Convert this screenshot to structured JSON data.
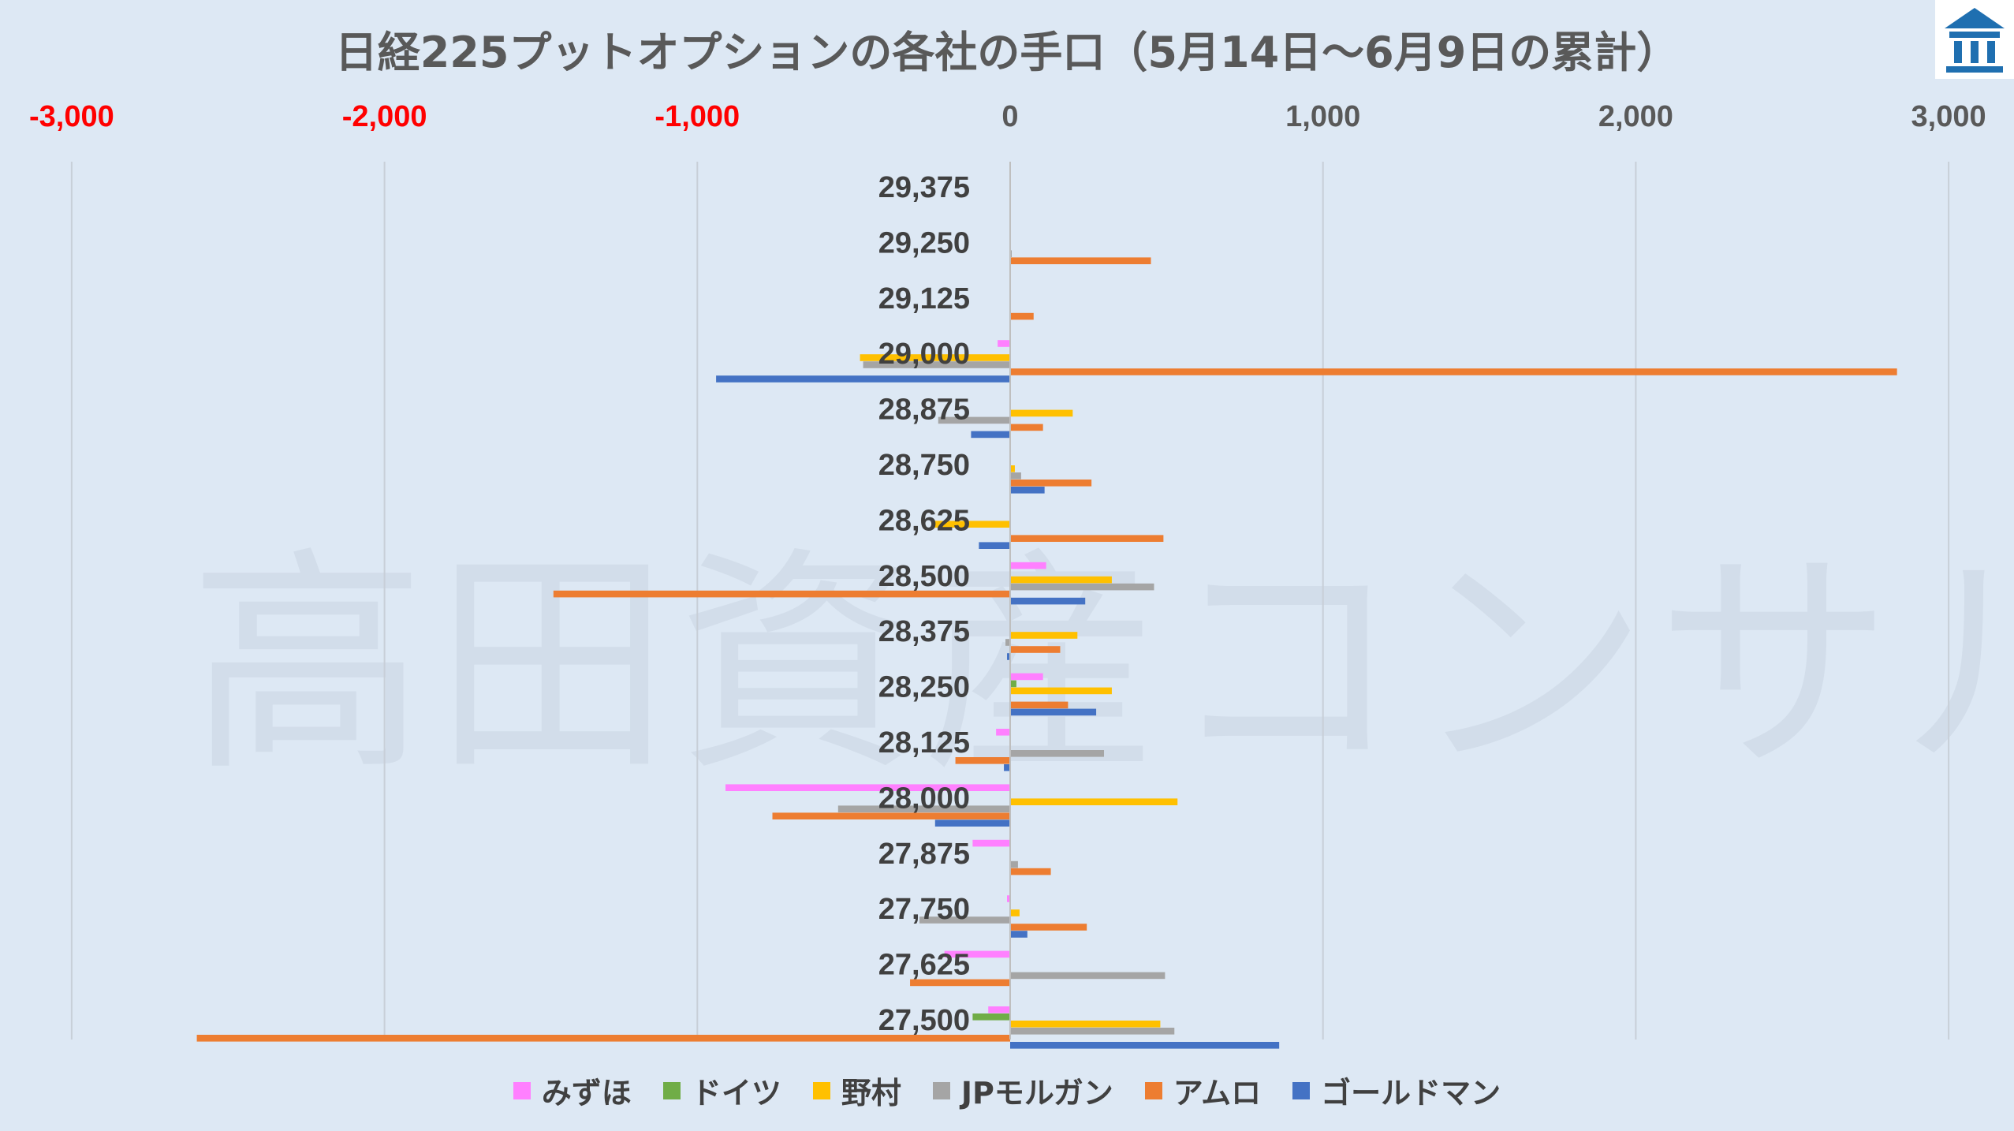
{
  "chart_data": {
    "type": "bar",
    "orientation": "horizontal",
    "title": "日経225プットオプションの各社の手口（5月14日～6月9日の累計）",
    "xlim": [
      -3000,
      3000
    ],
    "x_ticks": [
      "-3,000",
      "-2,000",
      "-1,000",
      "0",
      "1,000",
      "2,000",
      "3,000"
    ],
    "x_tick_values": [
      -3000,
      -2000,
      -1000,
      0,
      1000,
      2000,
      3000
    ],
    "grid": true,
    "legend_position": "bottom",
    "categories": [
      "29,375",
      "29,250",
      "29,125",
      "29,000",
      "28,875",
      "28,750",
      "28,625",
      "28,500",
      "28,375",
      "28,250",
      "28,125",
      "28,000",
      "27,875",
      "27,750",
      "27,625",
      "27,500"
    ],
    "series": [
      {
        "name": "みずほ",
        "color": "#ff80ff",
        "values": [
          0,
          0,
          0,
          -40,
          0,
          0,
          0,
          115,
          0,
          105,
          -45,
          -910,
          -120,
          -10,
          -210,
          -70
        ]
      },
      {
        "name": "ドイツ",
        "color": "#70ad47",
        "values": [
          0,
          0,
          0,
          0,
          0,
          0,
          0,
          0,
          0,
          20,
          0,
          0,
          0,
          0,
          0,
          -120
        ]
      },
      {
        "name": "野村",
        "color": "#ffc000",
        "values": [
          0,
          0,
          0,
          -480,
          200,
          15,
          -250,
          325,
          215,
          325,
          0,
          535,
          0,
          30,
          0,
          480
        ]
      },
      {
        "name": "JPモルガン",
        "color": "#a5a5a5",
        "values": [
          0,
          5,
          0,
          -470,
          -230,
          35,
          0,
          460,
          -15,
          0,
          300,
          -550,
          25,
          -290,
          495,
          525
        ]
      },
      {
        "name": "アムロ",
        "color": "#ed7d31",
        "values": [
          0,
          450,
          75,
          2835,
          105,
          260,
          490,
          -1460,
          160,
          185,
          -175,
          -760,
          130,
          245,
          -320,
          -2600
        ]
      },
      {
        "name": "ゴールドマン",
        "color": "#4472c4",
        "values": [
          0,
          0,
          0,
          -940,
          -125,
          110,
          -100,
          240,
          -10,
          275,
          -20,
          -240,
          0,
          55,
          0,
          860
        ]
      }
    ]
  },
  "watermark": "高田資産コンサル",
  "logo_icon": "building-logo-icon"
}
